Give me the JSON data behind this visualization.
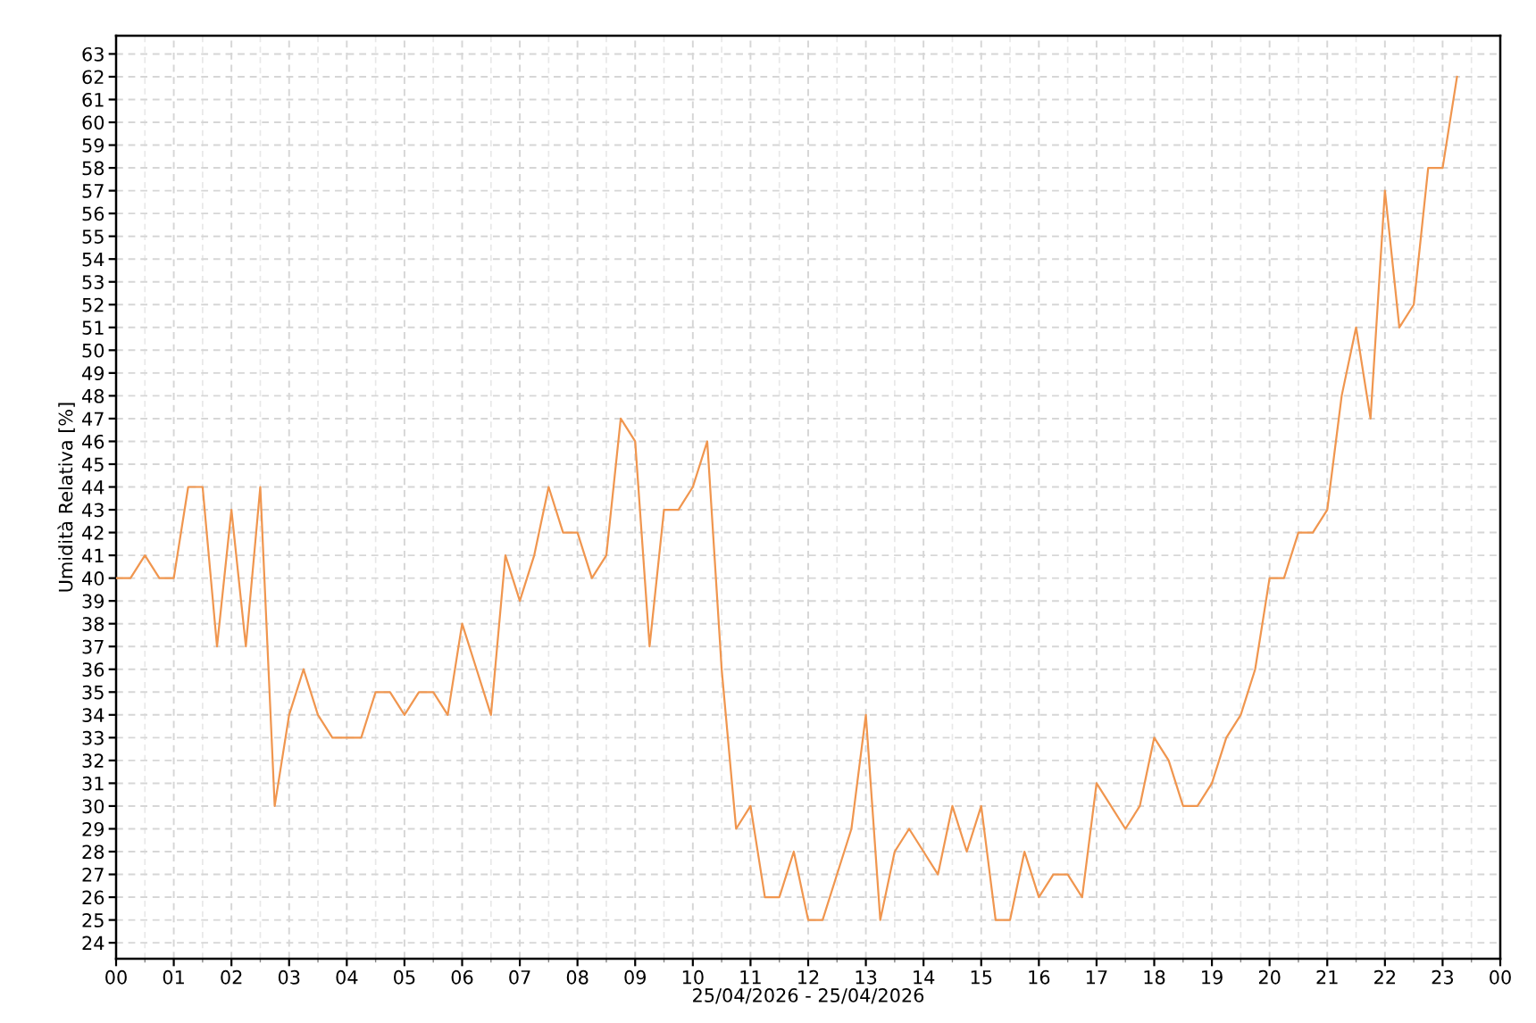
{
  "chart_data": {
    "type": "line",
    "xlabel": "25/04/2026 - 25/04/2026",
    "ylabel": "Umidità Relativa [%]",
    "x": [
      0,
      0.25,
      0.5,
      0.75,
      1,
      1.25,
      1.5,
      1.75,
      2,
      2.25,
      2.5,
      2.75,
      3,
      3.25,
      3.5,
      3.75,
      4,
      4.25,
      4.5,
      4.75,
      5,
      5.25,
      5.5,
      5.75,
      6,
      6.25,
      6.5,
      6.75,
      7,
      7.25,
      7.5,
      7.75,
      8,
      8.25,
      8.5,
      8.75,
      9,
      9.25,
      9.5,
      9.75,
      10,
      10.25,
      10.5,
      10.75,
      11,
      11.25,
      11.5,
      11.75,
      12,
      12.25,
      12.5,
      12.75,
      13,
      13.25,
      13.5,
      13.75,
      14,
      14.25,
      14.5,
      14.75,
      15,
      15.25,
      15.5,
      15.75,
      16,
      16.25,
      16.5,
      16.75,
      17,
      17.25,
      17.5,
      17.75,
      18,
      18.25,
      18.5,
      18.75,
      19,
      19.25,
      19.5,
      19.75,
      20,
      20.25,
      20.5,
      20.75,
      21,
      21.25,
      21.5,
      21.75,
      22,
      22.25,
      22.5,
      22.75,
      23,
      23.25
    ],
    "series": [
      {
        "color": "#f0964f",
        "values": [
          40,
          40,
          41,
          40,
          40,
          44,
          44,
          37,
          43,
          37,
          44,
          30,
          34,
          36,
          34,
          33,
          33,
          33,
          35,
          35,
          34,
          35,
          35,
          34,
          38,
          36,
          34,
          41,
          39,
          41,
          44,
          42,
          42,
          40,
          41,
          47,
          46,
          37,
          43,
          43,
          44,
          46,
          36,
          29,
          30,
          26,
          26,
          28,
          25,
          25,
          27,
          29,
          34,
          25,
          28,
          29,
          28,
          27,
          30,
          28,
          30,
          25,
          25,
          28,
          26,
          27,
          27,
          26,
          31,
          30,
          29,
          30,
          33,
          32,
          30,
          30,
          31,
          33,
          34,
          36,
          40,
          40,
          42,
          42,
          43,
          48,
          51,
          47,
          57,
          51,
          52,
          58,
          58,
          62
        ]
      }
    ],
    "xlim": [
      0,
      24
    ],
    "xticks": [
      {
        "value": 0,
        "label": "00"
      },
      {
        "value": 0.5,
        "label": null
      },
      {
        "value": 1,
        "label": "01"
      },
      {
        "value": 1.5,
        "label": null
      },
      {
        "value": 2,
        "label": "02"
      },
      {
        "value": 2.5,
        "label": null
      },
      {
        "value": 3,
        "label": "03"
      },
      {
        "value": 3.5,
        "label": null
      },
      {
        "value": 4,
        "label": "04"
      },
      {
        "value": 4.5,
        "label": null
      },
      {
        "value": 5,
        "label": "05"
      },
      {
        "value": 5.5,
        "label": null
      },
      {
        "value": 6,
        "label": "06"
      },
      {
        "value": 6.5,
        "label": null
      },
      {
        "value": 7,
        "label": "07"
      },
      {
        "value": 7.5,
        "label": null
      },
      {
        "value": 8,
        "label": "08"
      },
      {
        "value": 8.5,
        "label": null
      },
      {
        "value": 9,
        "label": "09"
      },
      {
        "value": 9.5,
        "label": null
      },
      {
        "value": 10,
        "label": "10"
      },
      {
        "value": 10.5,
        "label": null
      },
      {
        "value": 11,
        "label": "11"
      },
      {
        "value": 11.5,
        "label": null
      },
      {
        "value": 12,
        "label": "12"
      },
      {
        "value": 12.5,
        "label": null
      },
      {
        "value": 13,
        "label": "13"
      },
      {
        "value": 13.5,
        "label": null
      },
      {
        "value": 14,
        "label": "14"
      },
      {
        "value": 14.5,
        "label": null
      },
      {
        "value": 15,
        "label": "15"
      },
      {
        "value": 15.5,
        "label": null
      },
      {
        "value": 16,
        "label": "16"
      },
      {
        "value": 16.5,
        "label": null
      },
      {
        "value": 17,
        "label": "17"
      },
      {
        "value": 17.5,
        "label": null
      },
      {
        "value": 18,
        "label": "18"
      },
      {
        "value": 18.5,
        "label": null
      },
      {
        "value": 19,
        "label": "19"
      },
      {
        "value": 19.5,
        "label": null
      },
      {
        "value": 20,
        "label": "20"
      },
      {
        "value": 20.5,
        "label": null
      },
      {
        "value": 21,
        "label": "21"
      },
      {
        "value": 21.5,
        "label": null
      },
      {
        "value": 22,
        "label": "22"
      },
      {
        "value": 22.5,
        "label": null
      },
      {
        "value": 23,
        "label": "23"
      },
      {
        "value": 23.5,
        "label": null
      },
      {
        "value": 24,
        "label": "00"
      }
    ],
    "ylim": [
      23.3,
      63.8
    ],
    "yticks": [
      24,
      25,
      26,
      27,
      28,
      29,
      30,
      31,
      32,
      33,
      34,
      35,
      36,
      37,
      38,
      39,
      40,
      41,
      42,
      43,
      44,
      45,
      46,
      47,
      48,
      49,
      50,
      51,
      52,
      53,
      54,
      55,
      56,
      57,
      58,
      59,
      60,
      61,
      62,
      63
    ],
    "grid": true,
    "line_style": "solid"
  }
}
